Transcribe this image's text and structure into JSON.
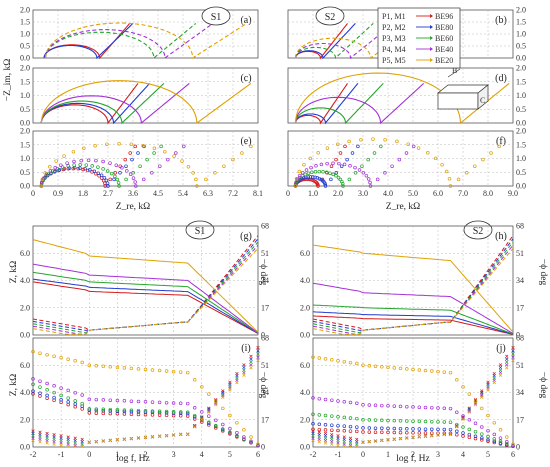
{
  "colors": {
    "red": "#d7191c",
    "blue": "#1f3bd1",
    "green": "#22a52a",
    "purple": "#a52fd9",
    "orange": "#e0a100"
  },
  "legend": [
    {
      "label": "P1, M1",
      "target": "B",
      "sub": "E",
      "num": "96",
      "color": "#d7191c"
    },
    {
      "label": "P2, M2",
      "target": "B",
      "sub": "E",
      "num": "80",
      "color": "#1f3bd1"
    },
    {
      "label": "P3, M3",
      "target": "B",
      "sub": "E",
      "num": "60",
      "color": "#22a52a"
    },
    {
      "label": "P4, M4",
      "target": "B",
      "sub": "E",
      "num": "40",
      "color": "#a52fd9"
    },
    {
      "label": "P5, M5",
      "target": "B",
      "sub": "E",
      "num": "20",
      "color": "#e0a100"
    }
  ],
  "labels": {
    "S1_top": "S1",
    "S2_top": "S2",
    "S1_bottom": "S1",
    "S2_bottom": "S2",
    "ylabel_nyquist": "−Z_im, kΩ",
    "xlabel_nyquist": "Z_re, kΩ",
    "ylabel_bode_left": "Z, kΩ",
    "ylabel_bode_right": "−ϕ deg",
    "xlabel_bode": "log f, Hz",
    "panels": [
      "(a)",
      "(b)",
      "(c)",
      "(d)",
      "(e)",
      "(f)",
      "(g)",
      "(h)",
      "(i)",
      "(j)"
    ],
    "inset_B": "B",
    "inset_C": "C"
  },
  "chart_data": [
    {
      "panel": "a",
      "type": "line",
      "xlim": [
        0,
        8.1
      ],
      "ylim": [
        0,
        2.0
      ],
      "yticks": [
        0,
        0.5,
        1.0,
        1.5,
        2.0
      ],
      "series": [
        {
          "style": "solid",
          "color": "red",
          "center": 1.4,
          "radius": 1.0,
          "base": 0.4
        },
        {
          "style": "solid",
          "color": "blue",
          "center": 1.35,
          "radius": 0.95,
          "base": 0.4
        },
        {
          "style": "dashed",
          "color": "green",
          "center": 2.4,
          "radius": 1.95,
          "base": 0.45
        },
        {
          "style": "dashed",
          "color": "purple",
          "center": 2.6,
          "radius": 2.15,
          "base": 0.45
        },
        {
          "style": "dashed",
          "color": "orange",
          "center": 3.1,
          "radius": 2.65,
          "base": 0.45
        }
      ]
    },
    {
      "panel": "b",
      "type": "line",
      "xlim": [
        0,
        9.0
      ],
      "ylim": [
        0,
        2.0
      ],
      "yticks": [
        0,
        0.5,
        1.0,
        1.5,
        2.0
      ],
      "series": [
        {
          "style": "solid",
          "color": "red",
          "center": 0.8,
          "radius": 0.5,
          "base": 0.3
        },
        {
          "style": "solid",
          "color": "blue",
          "center": 0.85,
          "radius": 0.55,
          "base": 0.3
        },
        {
          "style": "dashed",
          "color": "green",
          "center": 1.1,
          "radius": 0.8,
          "base": 0.3
        },
        {
          "style": "dashed",
          "color": "purple",
          "center": 1.4,
          "radius": 1.1,
          "base": 0.3
        },
        {
          "style": "dashed",
          "color": "orange",
          "center": 1.8,
          "radius": 1.5,
          "base": 0.3
        }
      ]
    },
    {
      "panel": "c",
      "type": "line",
      "xlim": [
        0,
        8.1
      ],
      "ylim": [
        0,
        2.0
      ],
      "yticks": [
        0,
        0.5,
        1.0,
        1.5,
        2.0
      ],
      "series": [
        {
          "style": "solid",
          "color": "red",
          "center": 1.5,
          "radius": 1.2,
          "base": 0.3
        },
        {
          "style": "solid",
          "color": "blue",
          "center": 1.6,
          "radius": 1.3,
          "base": 0.3
        },
        {
          "style": "solid",
          "color": "green",
          "center": 1.75,
          "radius": 1.45,
          "base": 0.3
        },
        {
          "style": "solid",
          "color": "purple",
          "center": 2.1,
          "radius": 1.8,
          "base": 0.3
        },
        {
          "style": "solid",
          "color": "orange",
          "center": 3.1,
          "radius": 2.8,
          "base": 0.3
        }
      ]
    },
    {
      "panel": "d",
      "type": "line",
      "xlim": [
        0,
        9.0
      ],
      "ylim": [
        0,
        2.0
      ],
      "yticks": [
        0,
        0.5,
        1.0,
        1.5,
        2.0
      ],
      "series": [
        {
          "style": "solid",
          "color": "red",
          "center": 0.8,
          "radius": 0.5,
          "base": 0.3
        },
        {
          "style": "solid",
          "color": "blue",
          "center": 0.9,
          "radius": 0.6,
          "base": 0.3
        },
        {
          "style": "solid",
          "color": "green",
          "center": 1.3,
          "radius": 1.0,
          "base": 0.3
        },
        {
          "style": "solid",
          "color": "purple",
          "center": 2.0,
          "radius": 1.7,
          "base": 0.3
        },
        {
          "style": "solid",
          "color": "orange",
          "center": 3.6,
          "radius": 3.3,
          "base": 0.3
        }
      ]
    },
    {
      "panel": "e",
      "type": "scatter",
      "xlim": [
        0,
        8.1
      ],
      "ylim": [
        0,
        2.0
      ],
      "yticks": [
        0,
        0.5,
        1.0,
        1.5,
        2.0
      ],
      "xticks": [
        "0",
        "0.9",
        "1.8",
        "2.7",
        "3.6",
        "4.5",
        "5.4",
        "6.3",
        "7.2",
        "8.1"
      ],
      "series": [
        {
          "color": "red",
          "center": 1.45,
          "radius": 1.15,
          "base": 0.3
        },
        {
          "color": "blue",
          "center": 1.5,
          "radius": 1.2,
          "base": 0.3
        },
        {
          "color": "green",
          "center": 1.7,
          "radius": 1.4,
          "base": 0.3
        },
        {
          "color": "purple",
          "center": 2.0,
          "radius": 1.7,
          "base": 0.3
        },
        {
          "color": "orange",
          "center": 3.1,
          "radius": 2.8,
          "base": 0.3
        }
      ]
    },
    {
      "panel": "f",
      "type": "scatter",
      "xlim": [
        0,
        9.0
      ],
      "ylim": [
        0,
        2.0
      ],
      "yticks": [
        0,
        0.5,
        1.0,
        1.5,
        2.0
      ],
      "xticks": [
        "0",
        "1.0",
        "2.0",
        "3.0",
        "4.0",
        "5.0",
        "6.0",
        "7.0",
        "8.0",
        "9.0"
      ],
      "series": [
        {
          "color": "red",
          "center": 0.75,
          "radius": 0.45,
          "base": 0.3
        },
        {
          "color": "blue",
          "center": 0.9,
          "radius": 0.6,
          "base": 0.3
        },
        {
          "color": "green",
          "center": 1.25,
          "radius": 0.95,
          "base": 0.3
        },
        {
          "color": "purple",
          "center": 1.8,
          "radius": 1.5,
          "base": 0.3
        },
        {
          "color": "orange",
          "center": 3.4,
          "radius": 3.1,
          "base": 0.3
        }
      ]
    },
    {
      "panel": "g",
      "type": "line",
      "xlim": [
        -2,
        6
      ],
      "ylim": [
        0,
        8
      ],
      "y2lim": [
        0,
        68
      ],
      "yticks": [
        0,
        2,
        4,
        6
      ],
      "y2ticks": [
        0,
        17,
        34,
        51,
        68
      ],
      "Z0": {
        "red": 3.9,
        "blue": 4.1,
        "green": 4.6,
        "purple": 5.2,
        "orange": 7.0
      },
      "Zmid": {
        "red": 3.2,
        "blue": 3.5,
        "green": 3.9,
        "purple": 4.4,
        "orange": 5.8
      }
    },
    {
      "panel": "h",
      "type": "line",
      "xlim": [
        -2,
        6
      ],
      "ylim": [
        0,
        8
      ],
      "y2lim": [
        0,
        68
      ],
      "yticks": [
        0,
        2,
        4,
        6
      ],
      "y2ticks": [
        0,
        17,
        34,
        51,
        68
      ],
      "Z0": {
        "red": 1.4,
        "blue": 1.7,
        "green": 2.2,
        "purple": 3.8,
        "orange": 6.6
      },
      "Zmid": {
        "red": 1.2,
        "blue": 1.5,
        "green": 2.0,
        "purple": 3.1,
        "orange": 6.0
      }
    },
    {
      "panel": "i",
      "type": "scatter",
      "xlim": [
        -2,
        6
      ],
      "ylim": [
        0,
        8
      ],
      "y2lim": [
        0,
        68
      ],
      "yticks": [
        0,
        2,
        4,
        6
      ],
      "y2ticks": [
        0,
        17,
        34,
        51,
        68
      ],
      "Z0": {
        "red": 3.9,
        "blue": 4.1,
        "green": 4.6,
        "purple": 5.0,
        "orange": 7.0
      },
      "Zmid": {
        "red": 2.5,
        "blue": 2.7,
        "green": 2.8,
        "purple": 3.5,
        "orange": 6.0
      }
    },
    {
      "panel": "j",
      "type": "scatter",
      "xlim": [
        -2,
        6
      ],
      "ylim": [
        0,
        8
      ],
      "y2lim": [
        0,
        68
      ],
      "yticks": [
        0,
        2,
        4,
        6
      ],
      "y2ticks": [
        0,
        17,
        34,
        51,
        68
      ],
      "Z0": {
        "red": 1.3,
        "blue": 1.7,
        "green": 2.4,
        "purple": 3.6,
        "orange": 6.6
      },
      "Zmid": {
        "red": 1.1,
        "blue": 1.4,
        "green": 2.0,
        "purple": 3.1,
        "orange": 6.0
      }
    }
  ]
}
